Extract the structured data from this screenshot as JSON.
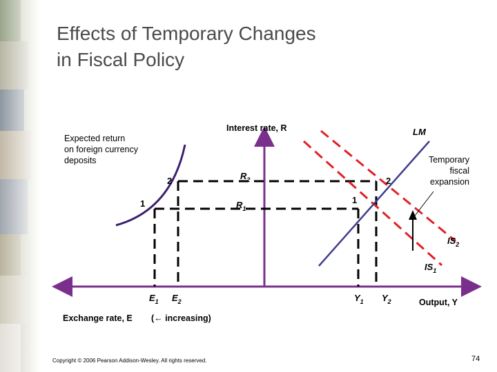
{
  "slide": {
    "title_line1": "Effects of Temporary Changes",
    "title_line2": "in Fiscal Policy",
    "copyright": "Copyright © 2006 Pearson Addison-Wesley. All rights reserved.",
    "page_number": "74"
  },
  "diagram": {
    "left_curve_label": [
      "Expected return",
      "on foreign currency",
      "deposits"
    ],
    "y_axis_label": "Interest rate, R",
    "lm_label": "LM",
    "shift_label": [
      "Temporary",
      "fiscal",
      "expansion"
    ],
    "r2": {
      "letter": "R",
      "sub": "2"
    },
    "r1": {
      "letter": "R",
      "sub": "1"
    },
    "point_2_left": "2",
    "point_1_left": "1",
    "point_2_right": "2",
    "point_1_right": "1",
    "is2": {
      "letter": "IS",
      "sub": "2"
    },
    "is1": {
      "letter": "IS",
      "sub": "1"
    },
    "e1": {
      "letter": "E",
      "sub": "1"
    },
    "e2": {
      "letter": "E",
      "sub": "2"
    },
    "y1": {
      "letter": "Y",
      "sub": "1"
    },
    "y2": {
      "letter": "Y",
      "sub": "2"
    },
    "x_axis_right_label": "Output, Y",
    "x_axis_left_label": "Exchange rate, E",
    "increasing_note": "(← increasing)",
    "colors": {
      "axis": "#7a2f8c",
      "is_curves": "#e11f26",
      "lm": "#3c3c8c",
      "dashed": "#000000"
    }
  }
}
